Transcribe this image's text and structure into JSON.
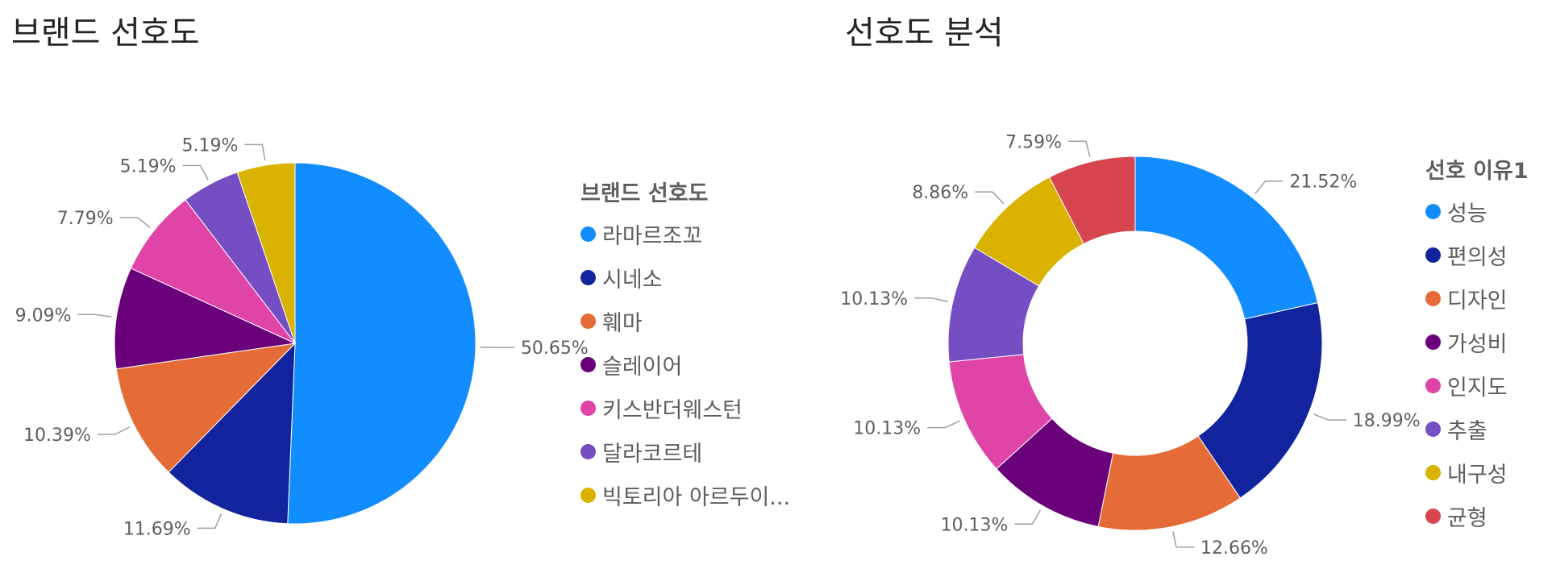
{
  "charts": {
    "left_title": "브랜드 선호도",
    "right_title": "선호도 분석",
    "left_legend_title": "브랜드 선호도",
    "right_legend_title": "선호 이유1"
  },
  "chart_data": [
    {
      "type": "pie",
      "title": "브랜드 선호도",
      "legend_title": "브랜드 선호도",
      "legend_position": "right",
      "slices": [
        {
          "label": "라마르조꼬",
          "value": 50.65,
          "display": "50.65%",
          "color": "#118DFF"
        },
        {
          "label": "시네소",
          "value": 11.69,
          "display": "11.69%",
          "color": "#12239E"
        },
        {
          "label": "훼마",
          "value": 10.39,
          "display": "10.39%",
          "color": "#E66C37"
        },
        {
          "label": "슬레이어",
          "value": 9.09,
          "display": "9.09%",
          "color": "#6B007B"
        },
        {
          "label": "키스반더웨스턴",
          "value": 7.79,
          "display": "7.79%",
          "color": "#E044A7"
        },
        {
          "label": "달라코르테",
          "value": 5.19,
          "display": "5.19%",
          "color": "#744EC2"
        },
        {
          "label": "빅토리아 아르두이...",
          "value": 5.19,
          "display": "5.19%",
          "color": "#D9B300"
        }
      ]
    },
    {
      "type": "donut",
      "title": "선호도 분석",
      "legend_title": "선호 이유1",
      "legend_position": "right",
      "slices": [
        {
          "label": "성능",
          "value": 21.52,
          "display": "21.52%",
          "color": "#118DFF"
        },
        {
          "label": "편의성",
          "value": 18.99,
          "display": "18.99%",
          "color": "#12239E"
        },
        {
          "label": "디자인",
          "value": 12.66,
          "display": "12.66%",
          "color": "#E66C37"
        },
        {
          "label": "가성비",
          "value": 10.13,
          "display": "10.13%",
          "color": "#6B007B"
        },
        {
          "label": "인지도",
          "value": 10.13,
          "display": "10.13%",
          "color": "#E044A7"
        },
        {
          "label": "추출",
          "value": 10.13,
          "display": "10.13%",
          "color": "#744EC2"
        },
        {
          "label": "내구성",
          "value": 8.86,
          "display": "8.86%",
          "color": "#D9B300"
        },
        {
          "label": "균형",
          "value": 7.59,
          "display": "7.59%",
          "color": "#D64550"
        }
      ]
    }
  ]
}
